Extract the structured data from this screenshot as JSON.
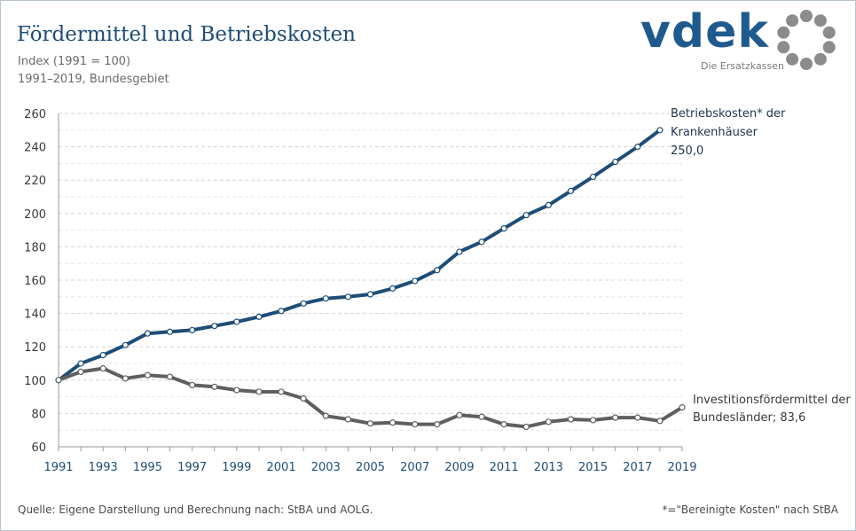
{
  "header": {
    "title": "Fördermittel und Betriebskosten",
    "subtitle1": "Index (1991 = 100)",
    "subtitle2": "1991–2019, Bundesgebiet"
  },
  "logo": {
    "word": "vdek",
    "tagline": "Die Ersatzkassen",
    "color": "#1e5a8e",
    "ring_color": "#8c8c8c"
  },
  "footer": {
    "source": "Quelle: Eigene Darstellung und Berechnung nach: StBA und AOLG.",
    "note": "*=\"Bereinigte Kosten\" nach StBA"
  },
  "chart_data": {
    "type": "line",
    "title": "Fördermittel und Betriebskosten",
    "xlim": [
      1991,
      2019
    ],
    "ylim": [
      60,
      260
    ],
    "y_ticks": [
      60,
      80,
      100,
      120,
      140,
      160,
      180,
      200,
      220,
      240,
      260
    ],
    "x_ticks": [
      1991,
      1993,
      1995,
      1997,
      1999,
      2001,
      2003,
      2005,
      2007,
      2009,
      2011,
      2013,
      2015,
      2017,
      2019
    ],
    "grid": true,
    "series": [
      {
        "name": "Betriebskosten* der Krankenhäuser",
        "label_lines": [
          "Betriebskosten* der",
          "Krankenhäuser",
          "250,0"
        ],
        "color": "#1e4d76",
        "x": [
          1991,
          1992,
          1993,
          1994,
          1995,
          1996,
          1997,
          1998,
          1999,
          2000,
          2001,
          2002,
          2003,
          2004,
          2005,
          2006,
          2007,
          2008,
          2009,
          2010,
          2011,
          2012,
          2013,
          2014,
          2015,
          2016,
          2017,
          2018
        ],
        "values": [
          100,
          110,
          115,
          121,
          128,
          129,
          130,
          132.5,
          135,
          138,
          141.5,
          146,
          149,
          150,
          151.5,
          155,
          159.5,
          166,
          177,
          183,
          191,
          199,
          205,
          213.5,
          222,
          231,
          240,
          250
        ]
      },
      {
        "name": "Investitionsfördermittel der Bundesländer",
        "label_lines": [
          "Investitionsfördermittel der",
          "Bundesländer; 83,6"
        ],
        "color": "#5f5f5f",
        "x": [
          1991,
          1992,
          1993,
          1994,
          1995,
          1996,
          1997,
          1998,
          1999,
          2000,
          2001,
          2002,
          2003,
          2004,
          2005,
          2006,
          2007,
          2008,
          2009,
          2010,
          2011,
          2012,
          2013,
          2014,
          2015,
          2016,
          2017,
          2018,
          2019
        ],
        "values": [
          100,
          105,
          107,
          101,
          103,
          102,
          97,
          96,
          94,
          93,
          93,
          89,
          78.5,
          76.5,
          74,
          74.5,
          73.5,
          73.5,
          79,
          78,
          73.5,
          72,
          75,
          76.5,
          76,
          77.5,
          77.5,
          75.5,
          83.6
        ]
      }
    ]
  }
}
